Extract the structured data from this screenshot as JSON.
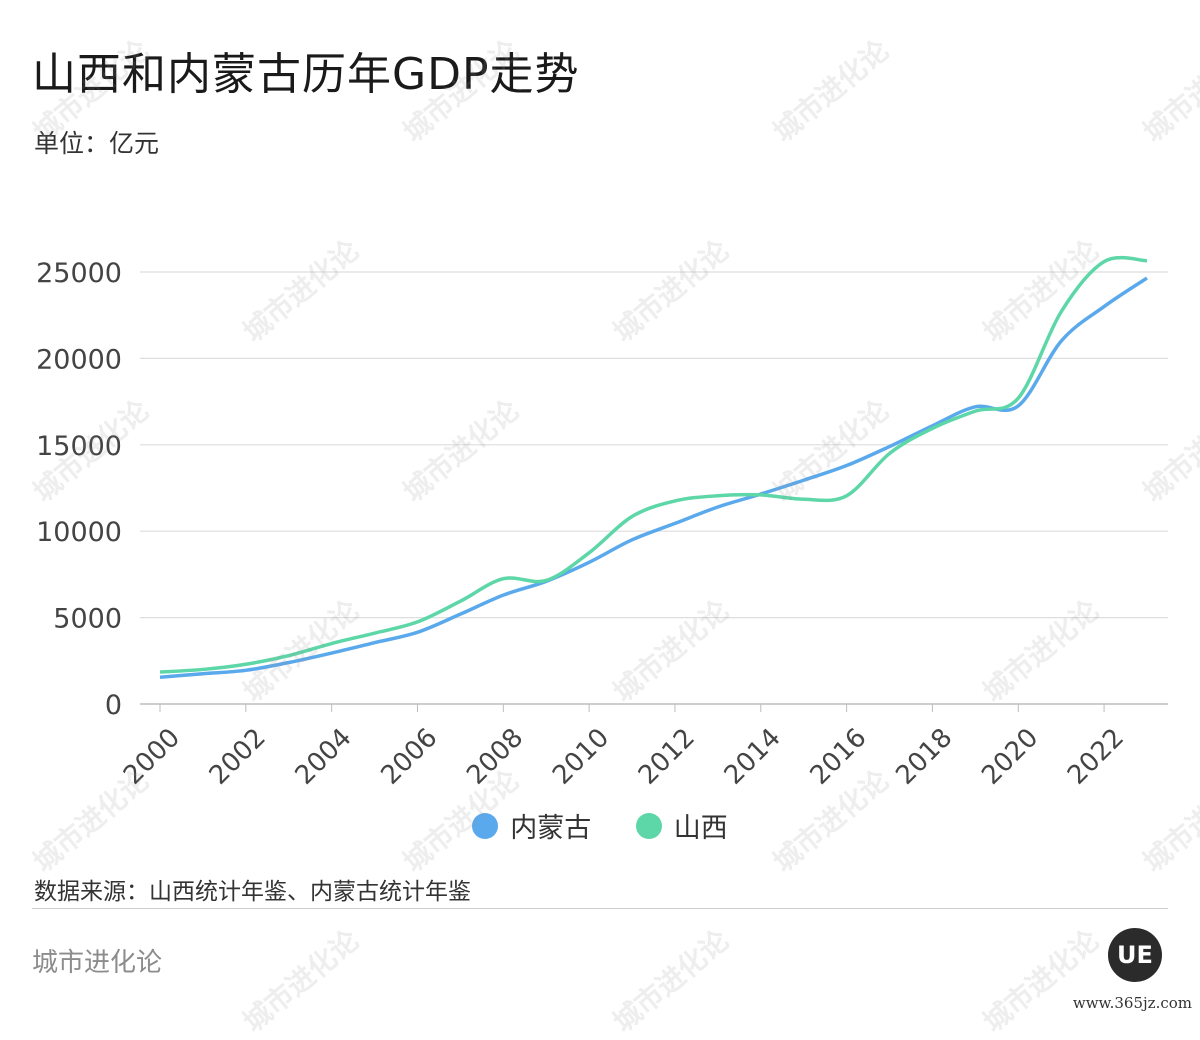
{
  "title": "山西和内蒙古历年GDP走势",
  "unit": "单位：亿元",
  "source": "数据来源：山西统计年鉴、内蒙古统计年鉴",
  "brand": "城市进化论",
  "logo_text": "UE",
  "site": "www.365jz.com",
  "watermark_text": "城市进化论",
  "chart_data": {
    "type": "line",
    "title": "山西和内蒙古历年GDP走势",
    "xlabel": "",
    "ylabel": "单位：亿元",
    "x": [
      2000,
      2001,
      2002,
      2003,
      2004,
      2005,
      2006,
      2007,
      2008,
      2009,
      2010,
      2011,
      2012,
      2013,
      2014,
      2015,
      2016,
      2017,
      2018,
      2019,
      2020,
      2021,
      2022,
      2023
    ],
    "x_ticks": [
      "2000",
      "2002",
      "2004",
      "2006",
      "2008",
      "2010",
      "2012",
      "2014",
      "2016",
      "2018",
      "2020",
      "2022"
    ],
    "y_ticks": [
      "0",
      "5000",
      "10000",
      "15000",
      "20000",
      "25000"
    ],
    "ylim": [
      0,
      25000
    ],
    "grid": true,
    "legend_position": "bottom-center",
    "series": [
      {
        "name": "内蒙古",
        "color": "#5aa9ec",
        "values": [
          1550,
          1750,
          1950,
          2400,
          2950,
          3550,
          4150,
          5200,
          6300,
          7100,
          8200,
          9500,
          10450,
          11400,
          12150,
          12950,
          13800,
          14900,
          16100,
          17200,
          17250,
          21000,
          23000,
          24650
        ]
      },
      {
        "name": "山西",
        "color": "#5dd6a8",
        "values": [
          1850,
          2000,
          2300,
          2800,
          3500,
          4100,
          4750,
          5950,
          7250,
          7150,
          8750,
          10850,
          11750,
          12050,
          12100,
          11850,
          12050,
          14500,
          15950,
          16950,
          17700,
          22700,
          25600,
          25650
        ]
      }
    ]
  }
}
